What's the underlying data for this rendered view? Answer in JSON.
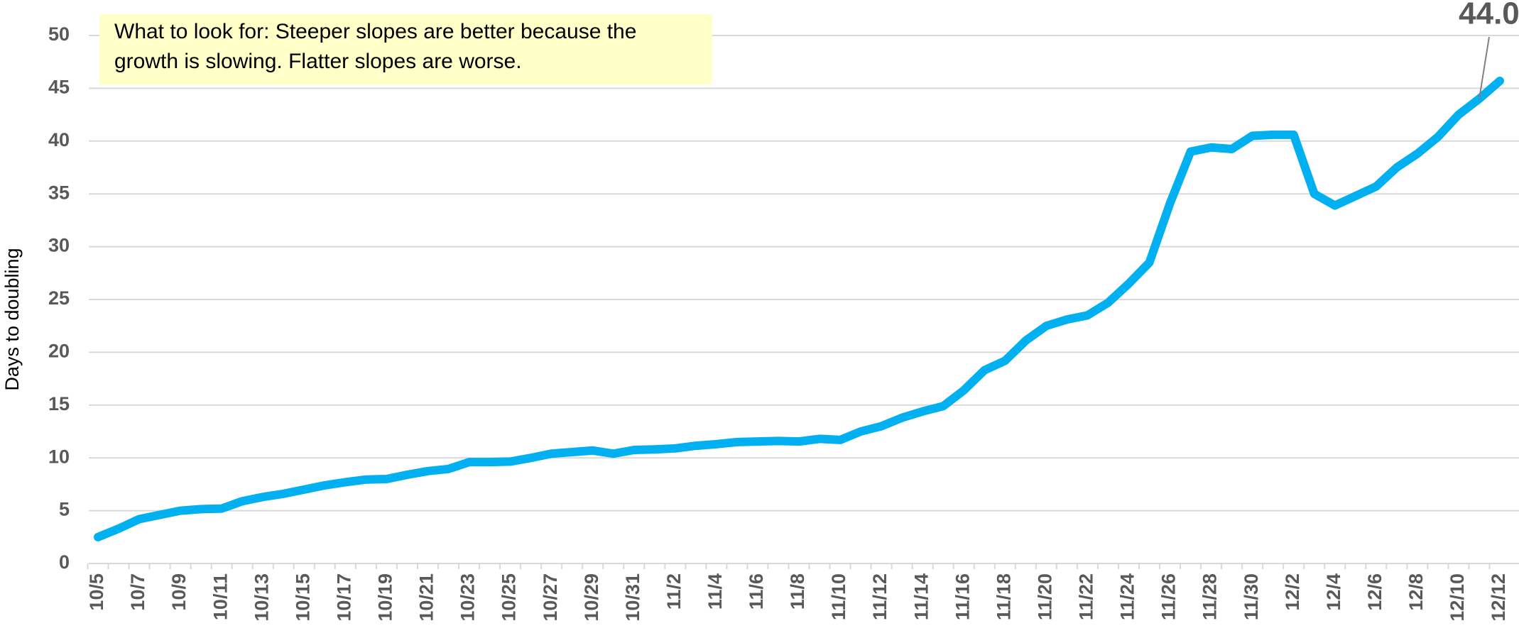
{
  "chart_data": {
    "type": "line",
    "y_label": "Days to doubling",
    "note": [
      "What to look for: Steeper slopes are better because the",
      "growth is slowing. Flatter slopes are worse."
    ],
    "categories": [
      "10/5",
      null,
      "10/7",
      null,
      "10/9",
      null,
      "10/11",
      null,
      "10/13",
      null,
      "10/15",
      null,
      "10/17",
      null,
      "10/19",
      null,
      "10/21",
      null,
      "10/23",
      null,
      "10/25",
      null,
      "10/27",
      null,
      "10/29",
      null,
      "10/31",
      null,
      "11/2",
      null,
      "11/4",
      null,
      "11/6",
      null,
      "11/8",
      null,
      "11/10",
      null,
      "11/12",
      null,
      "11/14",
      null,
      "11/16",
      null,
      "11/18",
      null,
      "11/20",
      null,
      "11/22",
      null,
      "11/24",
      null,
      "11/26",
      null,
      "11/28",
      null,
      "11/30",
      null,
      "12/2",
      null,
      "12/4",
      null,
      "12/6",
      null,
      "12/8",
      null,
      "12/10",
      null,
      "12/12"
    ],
    "series": [
      {
        "color": "#00b0f0",
        "values": [
          2.5,
          3.3,
          4.2,
          4.6,
          5.0,
          5.15,
          5.2,
          5.9,
          6.3,
          6.6,
          7.0,
          7.4,
          7.7,
          7.95,
          8.0,
          8.4,
          8.75,
          8.95,
          9.6,
          9.6,
          9.65,
          10.0,
          10.4,
          10.55,
          10.7,
          10.4,
          10.75,
          10.8,
          10.9,
          11.15,
          11.3,
          11.5,
          11.55,
          11.6,
          11.55,
          11.8,
          11.7,
          12.5,
          13.0,
          13.8,
          14.4,
          14.9,
          16.4,
          18.3,
          19.2,
          21.1,
          22.5,
          23.1,
          23.5,
          24.7,
          26.5,
          28.5,
          34.1,
          39.0,
          39.4,
          39.25,
          40.5,
          40.6,
          40.6,
          35.0,
          33.9,
          34.8,
          35.7,
          37.5,
          38.8,
          40.4,
          42.5,
          44.0,
          45.7
        ],
        "value_labels": [
          null,
          null,
          null,
          null,
          null,
          null,
          null,
          null,
          null,
          null,
          null,
          null,
          null,
          null,
          null,
          null,
          null,
          null,
          null,
          null,
          null,
          null,
          null,
          null,
          null,
          null,
          null,
          null,
          null,
          null,
          null,
          null,
          null,
          null,
          null,
          null,
          null,
          null,
          null,
          null,
          null,
          null,
          null,
          null,
          null,
          null,
          null,
          null,
          null,
          null,
          null,
          null,
          null,
          null,
          null,
          null,
          null,
          null,
          null,
          null,
          null,
          null,
          null,
          null,
          null,
          null,
          null,
          "44.0",
          null
        ]
      }
    ],
    "ylim": [
      0,
      50
    ],
    "yticks": [
      0,
      5,
      10,
      15,
      20,
      25,
      30,
      35,
      40,
      45,
      50
    ],
    "grid": true
  }
}
